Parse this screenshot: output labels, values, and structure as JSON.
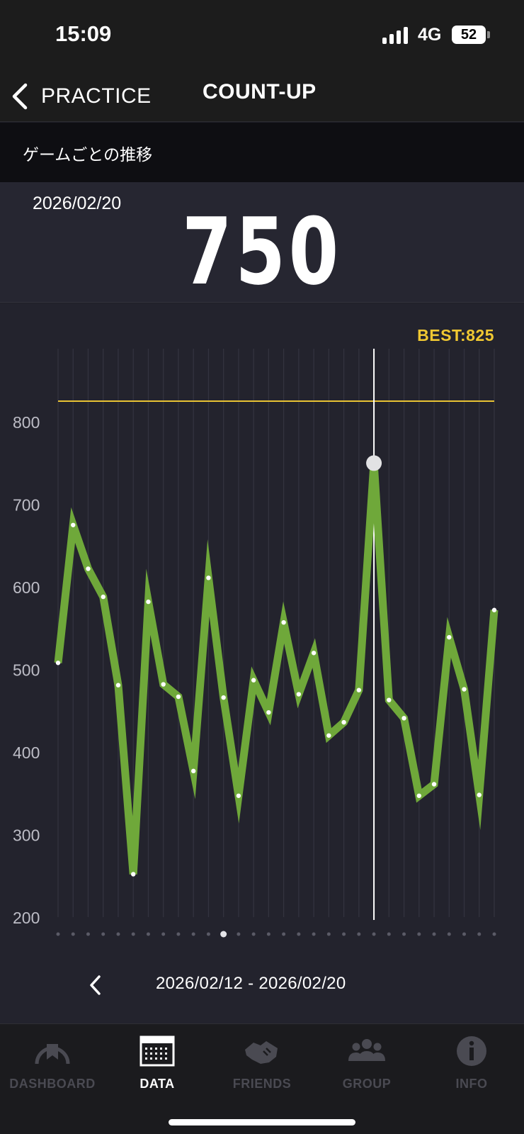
{
  "status_bar": {
    "time": "15:09",
    "network": "4G",
    "battery": "52"
  },
  "nav": {
    "back_label": "PRACTICE",
    "title": "COUNT-UP"
  },
  "section": {
    "title": "ゲームごとの推移"
  },
  "selected": {
    "date": "2026/02/20",
    "score": "750"
  },
  "best": {
    "label": "BEST:825",
    "value": 825
  },
  "range": {
    "label": "2026/02/12 - 2026/02/20"
  },
  "tabs": [
    {
      "label": "DASHBOARD",
      "icon": "dashboard-gauge-icon",
      "active": false
    },
    {
      "label": "DATA",
      "icon": "calendar-data-icon",
      "active": true
    },
    {
      "label": "FRIENDS",
      "icon": "friends-handshake-icon",
      "active": false
    },
    {
      "label": "GROUP",
      "icon": "group-people-icon",
      "active": false
    },
    {
      "label": "INFO",
      "icon": "info-icon",
      "active": false
    }
  ],
  "colors": {
    "line": "#6fa83a",
    "best_line": "#e8c234",
    "best_text": "#f0c832",
    "background": "#23232d"
  },
  "chart_data": {
    "type": "line",
    "title": "",
    "xlabel": "",
    "ylabel": "",
    "ylim": [
      200,
      880
    ],
    "yticks": [
      800,
      700,
      600,
      500,
      400,
      300,
      200
    ],
    "values": [
      508,
      675,
      622,
      588,
      481,
      252,
      582,
      482,
      467,
      377,
      611,
      466,
      347,
      487,
      448,
      557,
      470,
      520,
      420,
      436,
      475,
      750,
      463,
      441,
      347,
      361,
      539,
      476,
      348,
      572
    ],
    "best": 825,
    "selected_index": 21,
    "grid": true,
    "page_dots": 30,
    "active_page_dot": 11
  }
}
